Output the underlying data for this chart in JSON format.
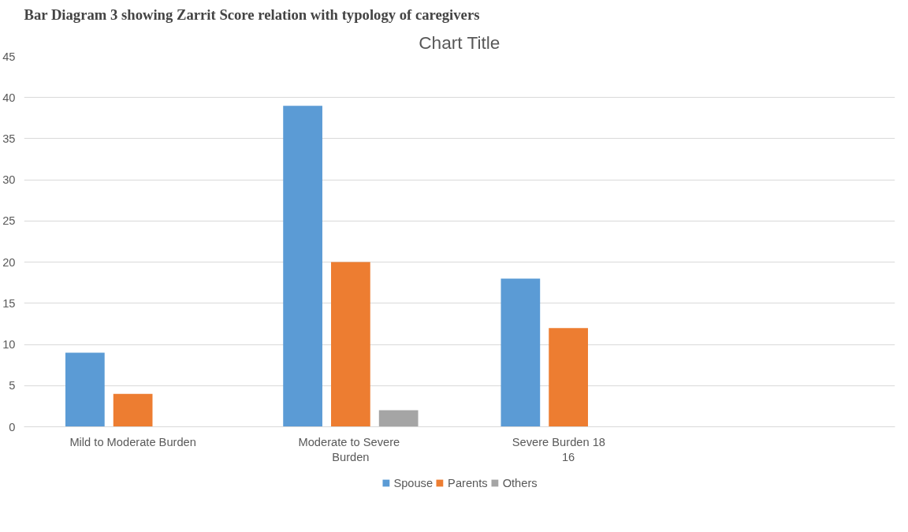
{
  "chart_data": {
    "type": "bar",
    "title": "Chart Title",
    "annotations": [
      "Bar Diagram 3 showing Zarrit Score relation with typology of caregivers"
    ],
    "categories": [
      "Mild to Moderate Burden",
      "Moderate to  Severe Burden",
      "Severe Burden       18 16",
      null
    ],
    "series": [
      {
        "name": "Spouse",
        "color": "#5b9bd5",
        "values": [
          9,
          39,
          18,
          null
        ]
      },
      {
        "name": "Parents",
        "color": "#ed7d31",
        "values": [
          4,
          20,
          12,
          null
        ]
      },
      {
        "name": "Others",
        "color": "#a5a5a5",
        "values": [
          0,
          2,
          0,
          null
        ]
      }
    ],
    "ylim": [
      0,
      45
    ],
    "yticks": [
      0,
      5,
      10,
      15,
      20,
      25,
      30,
      35,
      40,
      45
    ],
    "grid": "y",
    "legend": "bottom"
  }
}
